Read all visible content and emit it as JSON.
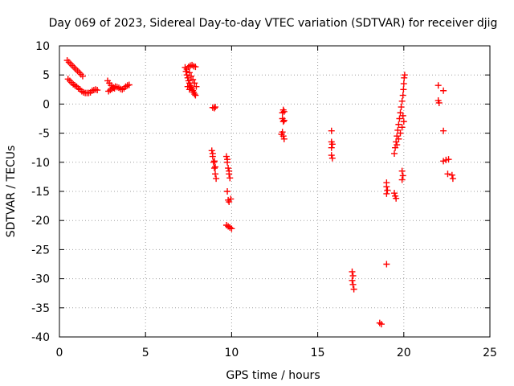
{
  "chart_data": {
    "type": "scatter",
    "title": "Day 069 of 2023, Sidereal Day-to-day VTEC variation (SDTVAR) for receiver djig",
    "xlabel": "GPS time / hours",
    "ylabel": "SDTVAR / TECUs",
    "xlim": [
      0,
      25
    ],
    "ylim": [
      -40,
      10
    ],
    "xticks": [
      0,
      5,
      10,
      15,
      20,
      25
    ],
    "yticks": [
      10,
      5,
      0,
      -5,
      -10,
      -15,
      -20,
      -25,
      -30,
      -35,
      -40
    ],
    "grid": true,
    "marker": "plus",
    "series": [
      {
        "name": "SDTVAR",
        "color": "#ff0000",
        "points": [
          [
            0.45,
            7.5
          ],
          [
            0.55,
            7.2
          ],
          [
            0.65,
            6.9
          ],
          [
            0.75,
            6.6
          ],
          [
            0.85,
            6.3
          ],
          [
            0.95,
            6.0
          ],
          [
            1.05,
            5.7
          ],
          [
            1.15,
            5.4
          ],
          [
            1.25,
            5.1
          ],
          [
            1.35,
            4.8
          ],
          [
            0.5,
            4.3
          ],
          [
            0.6,
            4.0
          ],
          [
            0.7,
            3.7
          ],
          [
            0.8,
            3.4
          ],
          [
            0.9,
            3.2
          ],
          [
            1.0,
            3.0
          ],
          [
            1.1,
            2.7
          ],
          [
            1.2,
            2.5
          ],
          [
            1.3,
            2.2
          ],
          [
            1.4,
            2.0
          ],
          [
            1.5,
            1.9
          ],
          [
            1.6,
            1.9
          ],
          [
            1.7,
            1.9
          ],
          [
            1.8,
            2.0
          ],
          [
            1.9,
            2.3
          ],
          [
            2.0,
            2.4
          ],
          [
            2.1,
            2.5
          ],
          [
            2.2,
            2.4
          ],
          [
            2.8,
            4.0
          ],
          [
            2.9,
            3.6
          ],
          [
            3.0,
            3.2
          ],
          [
            3.1,
            2.9
          ],
          [
            3.2,
            2.7
          ],
          [
            2.85,
            2.2
          ],
          [
            2.95,
            2.4
          ],
          [
            3.05,
            2.6
          ],
          [
            3.15,
            2.8
          ],
          [
            3.25,
            3.0
          ],
          [
            3.35,
            2.9
          ],
          [
            3.45,
            2.8
          ],
          [
            3.55,
            2.6
          ],
          [
            3.65,
            2.5
          ],
          [
            3.75,
            2.7
          ],
          [
            3.85,
            3.0
          ],
          [
            3.95,
            3.2
          ],
          [
            4.05,
            3.3
          ],
          [
            7.3,
            6.3
          ],
          [
            7.35,
            5.6
          ],
          [
            7.4,
            5.0
          ],
          [
            7.45,
            4.5
          ],
          [
            7.5,
            4.0
          ],
          [
            7.55,
            3.6
          ],
          [
            7.6,
            3.2
          ],
          [
            7.65,
            2.9
          ],
          [
            7.7,
            2.6
          ],
          [
            7.75,
            2.3
          ],
          [
            7.8,
            2.0
          ],
          [
            7.85,
            1.7
          ],
          [
            7.9,
            1.5
          ],
          [
            7.4,
            6.0
          ],
          [
            7.5,
            6.4
          ],
          [
            7.6,
            6.6
          ],
          [
            7.7,
            6.7
          ],
          [
            7.8,
            6.5
          ],
          [
            7.9,
            6.4
          ],
          [
            7.55,
            5.4
          ],
          [
            7.65,
            4.8
          ],
          [
            7.75,
            4.2
          ],
          [
            7.85,
            3.6
          ],
          [
            7.95,
            3.0
          ],
          [
            7.45,
            3.0
          ],
          [
            7.55,
            2.5
          ],
          [
            8.9,
            -0.6
          ],
          [
            9.0,
            -0.7
          ],
          [
            9.05,
            -0.5
          ],
          [
            8.85,
            -8.0
          ],
          [
            8.9,
            -9.0
          ],
          [
            8.95,
            -10.0
          ],
          [
            9.0,
            -11.0
          ],
          [
            9.05,
            -12.0
          ],
          [
            9.1,
            -12.8
          ],
          [
            8.9,
            -8.5
          ],
          [
            9.0,
            -9.8
          ],
          [
            9.05,
            -10.8
          ],
          [
            9.7,
            -9.0
          ],
          [
            9.75,
            -10.0
          ],
          [
            9.8,
            -11.0
          ],
          [
            9.85,
            -12.0
          ],
          [
            9.9,
            -12.7
          ],
          [
            9.75,
            -9.5
          ],
          [
            9.85,
            -11.5
          ],
          [
            9.75,
            -15.0
          ],
          [
            9.8,
            -16.5
          ],
          [
            9.85,
            -16.8
          ],
          [
            9.95,
            -16.3
          ],
          [
            9.7,
            -20.8
          ],
          [
            9.8,
            -21.0
          ],
          [
            9.9,
            -21.2
          ],
          [
            10.0,
            -21.4
          ],
          [
            12.95,
            -1.5
          ],
          [
            13.0,
            -1.0
          ],
          [
            13.05,
            -1.3
          ],
          [
            12.95,
            -2.5
          ],
          [
            13.0,
            -3.0
          ],
          [
            13.05,
            -2.8
          ],
          [
            12.95,
            -4.8
          ],
          [
            13.0,
            -5.5
          ],
          [
            13.05,
            -6.0
          ],
          [
            12.9,
            -5.2
          ],
          [
            15.8,
            -4.6
          ],
          [
            15.8,
            -6.5
          ],
          [
            15.85,
            -6.9
          ],
          [
            15.8,
            -7.5
          ],
          [
            15.8,
            -8.8
          ],
          [
            15.85,
            -9.3
          ],
          [
            17.0,
            -28.8
          ],
          [
            17.05,
            -29.5
          ],
          [
            17.0,
            -30.3
          ],
          [
            17.05,
            -31.0
          ],
          [
            17.1,
            -31.8
          ],
          [
            18.6,
            -37.6
          ],
          [
            18.7,
            -37.8
          ],
          [
            19.0,
            -27.5
          ],
          [
            19.0,
            -13.5
          ],
          [
            19.0,
            -14.2
          ],
          [
            19.05,
            -14.8
          ],
          [
            19.0,
            -15.4
          ],
          [
            19.45,
            -15.3
          ],
          [
            19.5,
            -15.8
          ],
          [
            19.55,
            -16.2
          ],
          [
            19.45,
            -8.5
          ],
          [
            19.5,
            -7.5
          ],
          [
            19.55,
            -6.5
          ],
          [
            19.6,
            -5.5
          ],
          [
            19.65,
            -4.5
          ],
          [
            19.7,
            -3.5
          ],
          [
            19.75,
            -2.5
          ],
          [
            19.8,
            -1.5
          ],
          [
            19.85,
            -0.5
          ],
          [
            19.9,
            0.5
          ],
          [
            19.95,
            1.5
          ],
          [
            19.98,
            2.5
          ],
          [
            20.0,
            3.5
          ],
          [
            20.02,
            4.5
          ],
          [
            20.05,
            5.0
          ],
          [
            19.6,
            -7.0
          ],
          [
            19.7,
            -6.0
          ],
          [
            19.8,
            -5.0
          ],
          [
            19.9,
            -4.0
          ],
          [
            20.0,
            -3.0
          ],
          [
            19.95,
            -2.0
          ],
          [
            19.9,
            -11.5
          ],
          [
            19.95,
            -12.3
          ],
          [
            19.9,
            -13.0
          ],
          [
            22.0,
            3.2
          ],
          [
            22.0,
            0.6
          ],
          [
            22.05,
            0.2
          ],
          [
            22.3,
            2.3
          ],
          [
            22.3,
            -4.6
          ],
          [
            22.3,
            -9.8
          ],
          [
            22.45,
            -9.6
          ],
          [
            22.6,
            -9.5
          ],
          [
            22.55,
            -12.0
          ],
          [
            22.8,
            -12.2
          ],
          [
            22.85,
            -12.8
          ]
        ]
      }
    ]
  }
}
